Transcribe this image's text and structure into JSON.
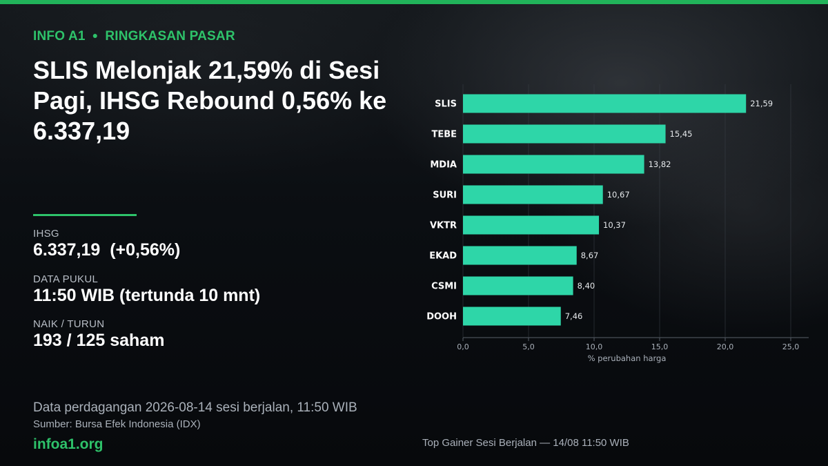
{
  "kicker": {
    "brand": "INFO A1",
    "section": "RINGKASAN PASAR"
  },
  "headline": "SLIS Melonjak 21,59% di Sesi Pagi, IHSG Rebound 0,56% ke 6.337,19",
  "stats": [
    {
      "label": "IHSG",
      "value": "6.337,19  (+0,56%)"
    },
    {
      "label": "DATA PUKUL",
      "value": "11:50 WIB (tertunda 10 mnt)"
    },
    {
      "label": "NAIK / TURUN",
      "value": "193 / 125 saham"
    }
  ],
  "footer": {
    "note": "Data perdagangan 2026-08-14 sesi berjalan, 11:50 WIB",
    "source": "Sumber: Bursa Efek Indonesia (IDX)",
    "site": "infoa1.org"
  },
  "chart_caption": "Top Gainer Sesi Berjalan — 14/08 11:50 WIB",
  "colors": {
    "accent": "#2ec26a",
    "bar": "#2ed6a8",
    "background": "#0b0e12"
  },
  "chart_data": {
    "type": "bar",
    "orientation": "horizontal",
    "categories": [
      "SLIS",
      "TEBE",
      "MDIA",
      "SURI",
      "VKTR",
      "EKAD",
      "CSMI",
      "DOOH"
    ],
    "values": [
      21.59,
      15.45,
      13.82,
      10.67,
      10.37,
      8.67,
      8.4,
      7.46
    ],
    "value_labels": [
      "21,59",
      "15,45",
      "13,82",
      "10,67",
      "10,37",
      "8,67",
      "8,40",
      "7,46"
    ],
    "xlabel": "% perubahan harga",
    "xlim": [
      0,
      25
    ],
    "xticks": [
      0,
      5,
      10,
      15,
      20,
      25
    ],
    "xtick_labels": [
      "0,0",
      "5,0",
      "10,0",
      "15,0",
      "20,0",
      "25,0"
    ],
    "grid": "vertical"
  }
}
